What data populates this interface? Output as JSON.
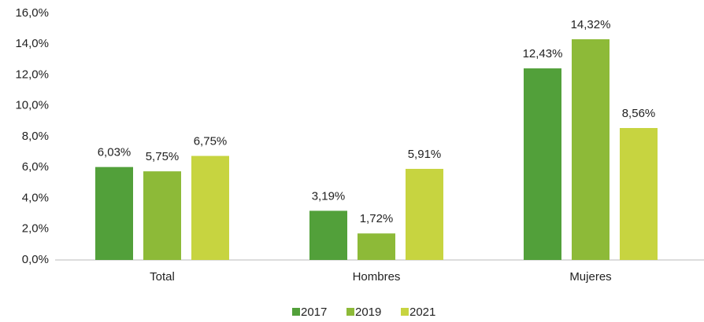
{
  "chart_data": {
    "type": "bar",
    "categories": [
      "Total",
      "Hombres",
      "Mujeres"
    ],
    "series": [
      {
        "name": "2017",
        "color": "#52a03a",
        "values": [
          6.03,
          3.19,
          12.43
        ],
        "value_labels": [
          "6,03%",
          "3,19%",
          "12,43%"
        ]
      },
      {
        "name": "2019",
        "color": "#8dba38",
        "values": [
          5.75,
          1.72,
          14.32
        ],
        "value_labels": [
          "5,75%",
          "1,72%",
          "14,32%"
        ]
      },
      {
        "name": "2021",
        "color": "#c7d440",
        "values": [
          6.75,
          5.91,
          8.56
        ],
        "value_labels": [
          "6,75%",
          "5,91%",
          "8,56%"
        ]
      }
    ],
    "ylim": [
      0,
      16
    ],
    "yticks": [
      {
        "value": 0,
        "label": "0,0%"
      },
      {
        "value": 2,
        "label": "2,0%"
      },
      {
        "value": 4,
        "label": "4,0%"
      },
      {
        "value": 6,
        "label": "6,0%"
      },
      {
        "value": 8,
        "label": "8,0%"
      },
      {
        "value": 10,
        "label": "10,0%"
      },
      {
        "value": 12,
        "label": "12,0%"
      },
      {
        "value": 14,
        "label": "14,0%"
      },
      {
        "value": 16,
        "label": "16,0%"
      }
    ],
    "grid": false,
    "legend": "bottom"
  }
}
